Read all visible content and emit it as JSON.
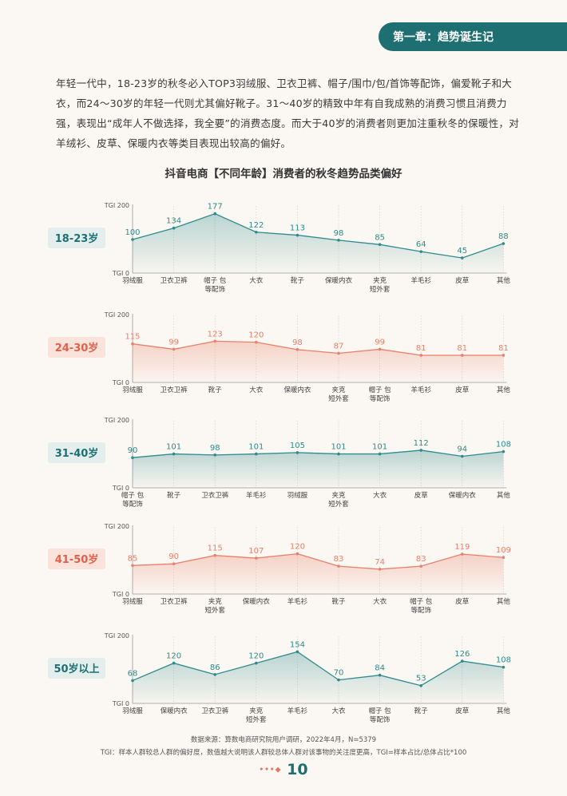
{
  "chapter_tab": "第一章：趋势诞生记",
  "intro_text": "年轻一代中，18-23岁的秋冬必入TOP3羽绒服、卫衣卫裤、帽子/围巾/包/首饰等配饰，偏爱靴子和大衣，而24～30岁的年轻一代则尤其偏好靴子。31～40岁的精致中年有自我成熟的消费习惯且消费力强，表现出“成年人不做选择，我全要”的消费态度。而大于40岁的消费者则更加注重秋冬的保暖性，对羊绒衫、皮草、保暖内衣等类目表现出较高的偏好。",
  "main_title": "抖音电商【不同年龄】消费者的秋冬趋势品类偏好",
  "colors": {
    "teal": "#2f8b8d",
    "salmon": "#e8806a",
    "teal_bg": "#e4efed",
    "salmon_bg": "#fbe3dc",
    "dark_teal": "#1e6f72"
  },
  "chart_data": [
    {
      "type": "area",
      "group": "18-23岁",
      "theme": "teal",
      "y_top_label": "TGI 200",
      "y_bottom_label": "TGI 0",
      "ylim": [
        0,
        200
      ],
      "categories": [
        "羽绒服",
        "卫衣卫裤",
        "帽子 包\n等配饰",
        "大衣",
        "靴子",
        "保暖内衣",
        "夹克\n短外套",
        "羊毛衫",
        "皮草",
        "其他"
      ],
      "values": [
        100,
        134,
        177,
        122,
        113,
        98,
        85,
        64,
        45,
        88
      ]
    },
    {
      "type": "area",
      "group": "24-30岁",
      "theme": "salmon",
      "y_top_label": "TGI 200",
      "y_bottom_label": "TGI 0",
      "ylim": [
        0,
        200
      ],
      "categories": [
        "羽绒服",
        "卫衣卫裤",
        "靴子",
        "大衣",
        "保暖内衣",
        "夹克\n短外套",
        "帽子 包\n等配饰",
        "羊毛衫",
        "皮草",
        "其他"
      ],
      "values": [
        115,
        99,
        123,
        120,
        98,
        87,
        99,
        81,
        81,
        81
      ]
    },
    {
      "type": "area",
      "group": "31-40岁",
      "theme": "teal",
      "y_top_label": "TGI 200",
      "y_bottom_label": "TGI 0",
      "ylim": [
        0,
        200
      ],
      "categories": [
        "帽子 包\n等配饰",
        "靴子",
        "卫衣卫裤",
        "羊毛衫",
        "羽绒服",
        "夹克\n短外套",
        "大衣",
        "皮草",
        "保暖内衣",
        "其他"
      ],
      "values": [
        90,
        101,
        98,
        101,
        105,
        101,
        101,
        112,
        94,
        108
      ]
    },
    {
      "type": "area",
      "group": "41-50岁",
      "theme": "salmon",
      "y_top_label": "TGI 200",
      "y_bottom_label": "TGI 0",
      "ylim": [
        0,
        200
      ],
      "categories": [
        "羽绒服",
        "卫衣卫裤",
        "夹克\n短外套",
        "保暖内衣",
        "羊毛衫",
        "靴子",
        "大衣",
        "帽子 包\n等配饰",
        "皮草",
        "其他"
      ],
      "values": [
        85,
        90,
        115,
        107,
        120,
        83,
        74,
        83,
        119,
        109
      ]
    },
    {
      "type": "area",
      "group": "50岁以上",
      "theme": "teal",
      "y_top_label": "TGI 200",
      "y_bottom_label": "TGI 0",
      "ylim": [
        0,
        200
      ],
      "categories": [
        "羽绒服",
        "保暖内衣",
        "卫衣卫裤",
        "夹克\n短外套",
        "羊毛衫",
        "大衣",
        "帽子 包\n等配饰",
        "靴子",
        "皮草",
        "其他"
      ],
      "values": [
        68,
        120,
        86,
        120,
        154,
        70,
        84,
        53,
        126,
        108
      ]
    }
  ],
  "footer": {
    "source": "数据来源：算数电商研究院用户调研，2022年4月，N=5379",
    "note": "TGI：样本人群较总人群的偏好度，数值越大说明该人群较总体人群对该事物的关注度更高，TGI=样本占比/总体占比*100"
  },
  "page_number": "10",
  "page_dots": "•••◆"
}
